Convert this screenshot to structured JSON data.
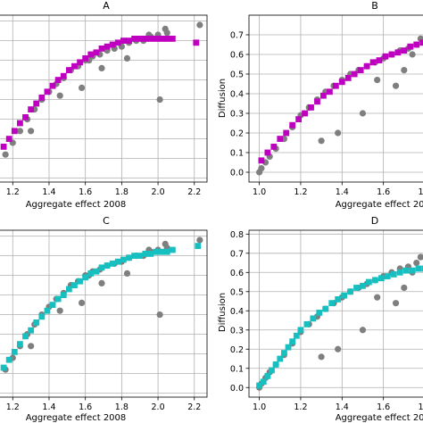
{
  "colors": {
    "observed": "#7f7f7f",
    "model_ab": "#c000c0",
    "model_cd": "#16c0c0"
  },
  "chart_data": [
    {
      "type": "scatter",
      "title": "A",
      "xlabel": "Aggregate effect 2008",
      "ylabel": "",
      "xlim": [
        1.12,
        2.27
      ],
      "ylim": [
        -0.02,
        0.83
      ],
      "xticks": [
        1.2,
        1.4,
        1.6,
        1.8,
        2.0,
        2.2
      ],
      "xtick_labels": [
        "1.2",
        "1.4",
        "1.6",
        "1.8",
        "2.0",
        "2.2"
      ],
      "yticks": [],
      "grid": true,
      "model_color": "model_ab",
      "series": [
        {
          "marker": "circle",
          "x": [
            1.16,
            1.2,
            1.24,
            1.28,
            1.32,
            1.36,
            1.4,
            1.44,
            1.48,
            1.52,
            1.56,
            1.6,
            1.64,
            1.68,
            1.72,
            1.76,
            1.8,
            1.84,
            1.88,
            1.92,
            1.96,
            2.0,
            2.04,
            1.3,
            1.46,
            1.58,
            1.62,
            1.69,
            1.83,
            1.95,
            2.01,
            2.05,
            2.23
          ],
          "y": [
            0.12,
            0.18,
            0.24,
            0.3,
            0.35,
            0.4,
            0.44,
            0.48,
            0.51,
            0.55,
            0.57,
            0.6,
            0.62,
            0.63,
            0.65,
            0.66,
            0.67,
            0.69,
            0.7,
            0.7,
            0.72,
            0.73,
            0.76,
            0.24,
            0.42,
            0.46,
            0.6,
            0.56,
            0.61,
            0.73,
            0.4,
            0.74,
            0.78
          ]
        },
        {
          "marker": "square",
          "x": [
            1.15,
            1.18,
            1.21,
            1.24,
            1.27,
            1.3,
            1.33,
            1.36,
            1.39,
            1.42,
            1.45,
            1.48,
            1.51,
            1.54,
            1.57,
            1.6,
            1.63,
            1.66,
            1.69,
            1.72,
            1.75,
            1.78,
            1.81,
            1.84,
            1.87,
            1.9,
            1.93,
            1.96,
            1.99,
            2.02,
            2.05,
            2.08,
            2.21
          ],
          "y": [
            0.16,
            0.2,
            0.24,
            0.28,
            0.31,
            0.35,
            0.38,
            0.41,
            0.44,
            0.47,
            0.5,
            0.52,
            0.55,
            0.57,
            0.59,
            0.61,
            0.63,
            0.64,
            0.66,
            0.67,
            0.68,
            0.69,
            0.7,
            0.7,
            0.71,
            0.71,
            0.71,
            0.71,
            0.71,
            0.71,
            0.71,
            0.71,
            0.69
          ]
        }
      ]
    },
    {
      "type": "scatter",
      "title": "B",
      "xlabel": "Aggregate effect 2012",
      "ylabel": "Diffusion",
      "xlim": [
        0.95,
        1.8
      ],
      "ylim": [
        -0.05,
        0.8
      ],
      "xticks": [
        1.0,
        1.2,
        1.4,
        1.6,
        1.8
      ],
      "xtick_labels": [
        "1.0",
        "1.2",
        "1.4",
        "1.6",
        "1.8"
      ],
      "yticks": [
        0.0,
        0.1,
        0.2,
        0.3,
        0.4,
        0.5,
        0.6,
        0.7
      ],
      "ytick_labels": [
        "0.0",
        "0.1",
        "0.2",
        "0.3",
        "0.4",
        "0.5",
        "0.6",
        "0.7"
      ],
      "grid": true,
      "model_color": "model_ab",
      "series": [
        {
          "marker": "circle",
          "x": [
            1.0,
            1.01,
            1.03,
            1.05,
            1.08,
            1.12,
            1.16,
            1.2,
            1.24,
            1.28,
            1.32,
            1.36,
            1.4,
            1.44,
            1.48,
            1.52,
            1.56,
            1.6,
            1.64,
            1.68,
            1.72,
            1.76,
            1.3,
            1.38,
            1.5,
            1.57,
            1.66,
            1.7,
            1.74,
            1.78
          ],
          "y": [
            0.0,
            0.02,
            0.05,
            0.08,
            0.12,
            0.17,
            0.23,
            0.29,
            0.33,
            0.37,
            0.41,
            0.44,
            0.47,
            0.5,
            0.52,
            0.54,
            0.56,
            0.58,
            0.6,
            0.62,
            0.63,
            0.65,
            0.16,
            0.2,
            0.3,
            0.47,
            0.44,
            0.52,
            0.6,
            0.68
          ]
        },
        {
          "marker": "square",
          "x": [
            1.01,
            1.04,
            1.07,
            1.1,
            1.13,
            1.16,
            1.19,
            1.22,
            1.25,
            1.28,
            1.31,
            1.34,
            1.37,
            1.4,
            1.43,
            1.46,
            1.49,
            1.52,
            1.55,
            1.58,
            1.61,
            1.64,
            1.67,
            1.7,
            1.73,
            1.76,
            1.79
          ],
          "y": [
            0.06,
            0.1,
            0.13,
            0.17,
            0.2,
            0.24,
            0.27,
            0.3,
            0.33,
            0.36,
            0.39,
            0.41,
            0.44,
            0.46,
            0.48,
            0.5,
            0.52,
            0.54,
            0.56,
            0.57,
            0.59,
            0.6,
            0.61,
            0.62,
            0.64,
            0.65,
            0.66
          ]
        }
      ]
    },
    {
      "type": "scatter",
      "title": "C",
      "xlabel": "Aggregate effect 2008",
      "ylabel": "",
      "xlim": [
        1.12,
        2.27
      ],
      "ylim": [
        -0.02,
        0.83
      ],
      "xticks": [
        1.2,
        1.4,
        1.6,
        1.8,
        2.0,
        2.2
      ],
      "xtick_labels": [
        "1.2",
        "1.4",
        "1.6",
        "1.8",
        "2.0",
        "2.2"
      ],
      "yticks": [],
      "grid": true,
      "model_color": "model_cd",
      "series": [
        {
          "marker": "circle",
          "x": [
            1.16,
            1.2,
            1.24,
            1.28,
            1.32,
            1.36,
            1.4,
            1.44,
            1.48,
            1.52,
            1.56,
            1.6,
            1.64,
            1.68,
            1.72,
            1.76,
            1.8,
            1.84,
            1.88,
            1.92,
            1.96,
            2.0,
            2.04,
            1.3,
            1.46,
            1.58,
            1.62,
            1.69,
            1.83,
            1.95,
            2.01,
            2.05,
            2.23
          ],
          "y": [
            0.12,
            0.18,
            0.24,
            0.3,
            0.35,
            0.4,
            0.44,
            0.48,
            0.51,
            0.55,
            0.57,
            0.6,
            0.62,
            0.63,
            0.65,
            0.66,
            0.67,
            0.69,
            0.7,
            0.7,
            0.72,
            0.73,
            0.76,
            0.24,
            0.42,
            0.46,
            0.6,
            0.56,
            0.61,
            0.73,
            0.4,
            0.74,
            0.78
          ]
        },
        {
          "marker": "square",
          "x": [
            1.15,
            1.18,
            1.21,
            1.24,
            1.27,
            1.3,
            1.33,
            1.36,
            1.39,
            1.42,
            1.45,
            1.48,
            1.51,
            1.54,
            1.57,
            1.6,
            1.63,
            1.66,
            1.69,
            1.72,
            1.75,
            1.78,
            1.81,
            1.84,
            1.87,
            1.9,
            1.93,
            1.96,
            1.99,
            2.02,
            2.05,
            2.08,
            2.22
          ],
          "y": [
            0.13,
            0.17,
            0.21,
            0.25,
            0.29,
            0.32,
            0.36,
            0.39,
            0.42,
            0.45,
            0.48,
            0.5,
            0.53,
            0.55,
            0.57,
            0.59,
            0.61,
            0.62,
            0.64,
            0.65,
            0.66,
            0.67,
            0.68,
            0.69,
            0.7,
            0.7,
            0.71,
            0.71,
            0.72,
            0.72,
            0.72,
            0.73,
            0.75
          ]
        }
      ]
    },
    {
      "type": "scatter",
      "title": "D",
      "xlabel": "Aggregate effect 2012",
      "ylabel": "Diffusion",
      "xlim": [
        0.95,
        1.8
      ],
      "ylim": [
        -0.05,
        0.82
      ],
      "xticks": [
        1.0,
        1.2,
        1.4,
        1.6,
        1.8
      ],
      "xtick_labels": [
        "1.0",
        "1.2",
        "1.4",
        "1.6",
        "1.8"
      ],
      "yticks": [
        0.0,
        0.1,
        0.2,
        0.3,
        0.4,
        0.5,
        0.6,
        0.7,
        0.8
      ],
      "ytick_labels": [
        "0.0",
        "0.1",
        "0.2",
        "0.3",
        "0.4",
        "0.5",
        "0.6",
        "0.7",
        "0.8"
      ],
      "grid": true,
      "model_color": "model_cd",
      "series": [
        {
          "marker": "circle",
          "x": [
            1.0,
            1.01,
            1.03,
            1.05,
            1.08,
            1.12,
            1.16,
            1.2,
            1.24,
            1.28,
            1.32,
            1.36,
            1.4,
            1.44,
            1.48,
            1.52,
            1.56,
            1.6,
            1.64,
            1.68,
            1.72,
            1.76,
            1.3,
            1.38,
            1.5,
            1.57,
            1.66,
            1.7,
            1.74,
            1.78
          ],
          "y": [
            0.0,
            0.02,
            0.05,
            0.08,
            0.12,
            0.17,
            0.23,
            0.29,
            0.33,
            0.37,
            0.41,
            0.44,
            0.47,
            0.5,
            0.52,
            0.54,
            0.56,
            0.58,
            0.6,
            0.62,
            0.63,
            0.65,
            0.16,
            0.2,
            0.3,
            0.47,
            0.44,
            0.52,
            0.6,
            0.68
          ]
        },
        {
          "marker": "square",
          "x": [
            1.0,
            1.02,
            1.04,
            1.06,
            1.08,
            1.1,
            1.12,
            1.14,
            1.16,
            1.18,
            1.2,
            1.23,
            1.26,
            1.29,
            1.32,
            1.35,
            1.38,
            1.41,
            1.44,
            1.47,
            1.5,
            1.53,
            1.56,
            1.59,
            1.62,
            1.65,
            1.68,
            1.71,
            1.74,
            1.77,
            1.8
          ],
          "y": [
            0.01,
            0.03,
            0.06,
            0.09,
            0.12,
            0.15,
            0.18,
            0.21,
            0.24,
            0.27,
            0.3,
            0.33,
            0.36,
            0.39,
            0.41,
            0.44,
            0.46,
            0.48,
            0.5,
            0.52,
            0.53,
            0.55,
            0.56,
            0.57,
            0.58,
            0.59,
            0.6,
            0.61,
            0.61,
            0.62,
            0.62
          ]
        }
      ]
    }
  ]
}
